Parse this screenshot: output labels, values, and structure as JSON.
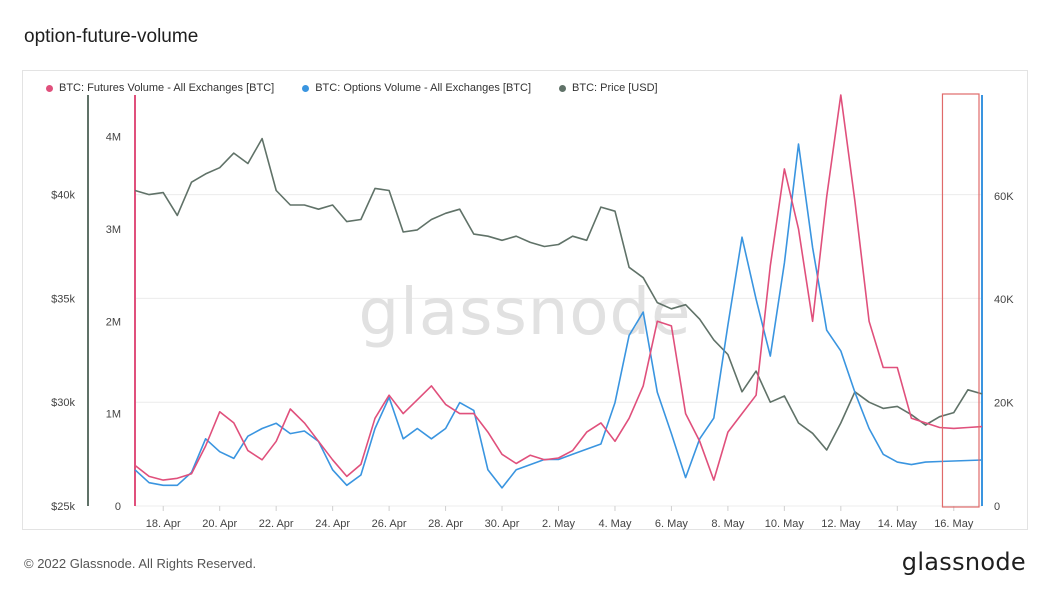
{
  "page": {
    "title": "option-future-volume",
    "copyright": "© 2022 Glassnode. All Rights Reserved.",
    "logo": "glassnode",
    "watermark": "glassnode"
  },
  "chart_data": {
    "type": "line",
    "xlabel": "",
    "ylabel": "",
    "x_ticks": [
      "18. Apr",
      "20. Apr",
      "22. Apr",
      "24. Apr",
      "26. Apr",
      "28. Apr",
      "30. Apr",
      "2. May",
      "4. May",
      "6. May",
      "8. May",
      "10. May",
      "12. May",
      "14. May",
      "16. May"
    ],
    "axes": {
      "price": {
        "side": "outer-left",
        "ticks": [
          "$25k",
          "$30k",
          "$35k",
          "$40k"
        ],
        "range": [
          25000,
          44800
        ]
      },
      "futures": {
        "side": "left",
        "ticks": [
          "0",
          "1M",
          "2M",
          "3M",
          "4M"
        ],
        "range": [
          0,
          4450000
        ]
      },
      "options": {
        "side": "right",
        "ticks": [
          "0",
          "20K",
          "40K",
          "60K"
        ],
        "range": [
          0,
          79500
        ]
      }
    },
    "highlight_range": [
      "15. May",
      "16. May"
    ],
    "grid": true,
    "legend_position": "top-left",
    "series": [
      {
        "name": "BTC: Futures Volume - All Exchanges [BTC]",
        "color": "#e0507c",
        "axis": "futures",
        "x": [
          0,
          0.5,
          1,
          1.5,
          2,
          2.5,
          3,
          3.5,
          4,
          4.5,
          5,
          5.5,
          6,
          6.5,
          7,
          7.5,
          8,
          8.5,
          9,
          9.5,
          10,
          10.5,
          11,
          11.5,
          12,
          12.5,
          13,
          13.5,
          14,
          14.5,
          15,
          15.5,
          16,
          16.5,
          17,
          17.5,
          18,
          18.5,
          19,
          19.5,
          20,
          20.5,
          21,
          21.5,
          22,
          22.5,
          23,
          23.5,
          24,
          24.5,
          25,
          25.5,
          26,
          26.5,
          27,
          27.5,
          28,
          28.5,
          29,
          29.5,
          30
        ],
        "values": [
          440000,
          320000,
          280000,
          300000,
          350000,
          650000,
          1020000,
          900000,
          600000,
          500000,
          700000,
          1050000,
          900000,
          700000,
          500000,
          320000,
          450000,
          950000,
          1200000,
          1000000,
          1150000,
          1300000,
          1100000,
          1000000,
          1000000,
          800000,
          560000,
          460000,
          550000,
          500000,
          520000,
          600000,
          800000,
          900000,
          700000,
          950000,
          1300000,
          2000000,
          1950000,
          1000000,
          700000,
          280000,
          800000,
          1000000,
          1200000,
          2600000,
          3650000,
          3000000,
          2000000,
          3350000,
          4450000,
          3300000,
          2000000,
          1500000,
          1500000,
          950000,
          900000,
          850000,
          840000,
          850000,
          860000
        ]
      },
      {
        "name": "BTC: Options Volume - All Exchanges [BTC]",
        "color": "#3a95e0",
        "axis": "options",
        "x": [
          0,
          0.5,
          1,
          1.5,
          2,
          2.5,
          3,
          3.5,
          4,
          4.5,
          5,
          5.5,
          6,
          6.5,
          7,
          7.5,
          8,
          8.5,
          9,
          9.5,
          10,
          10.5,
          11,
          11.5,
          12,
          12.5,
          13,
          13.5,
          14,
          14.5,
          15,
          15.5,
          16,
          16.5,
          17,
          17.5,
          18,
          18.5,
          19,
          19.5,
          20,
          20.5,
          21,
          21.5,
          22,
          22.5,
          23,
          23.5,
          24,
          24.5,
          25,
          25.5,
          26,
          26.5,
          27,
          27.5,
          28,
          28.5,
          29,
          29.5,
          30
        ],
        "values": [
          7000,
          4500,
          4000,
          4000,
          6500,
          13000,
          10500,
          9200,
          13500,
          15000,
          16000,
          14000,
          14500,
          12500,
          7000,
          4000,
          6000,
          15000,
          21000,
          13000,
          15000,
          13000,
          15000,
          20000,
          18500,
          7000,
          3500,
          7000,
          8000,
          9000,
          9000,
          10000,
          11000,
          12000,
          20000,
          33000,
          37500,
          22000,
          14000,
          5500,
          13000,
          17000,
          35000,
          52000,
          40000,
          29000,
          47000,
          70000,
          50000,
          34000,
          30000,
          22000,
          15000,
          10000,
          8500,
          8000,
          8500,
          8600,
          8700,
          8800,
          8900
        ]
      },
      {
        "name": "BTC: Price [USD]",
        "color": "#607268",
        "axis": "price",
        "x": [
          0,
          0.5,
          1,
          1.5,
          2,
          2.5,
          3,
          3.5,
          4,
          4.5,
          5,
          5.5,
          6,
          6.5,
          7,
          7.5,
          8,
          8.5,
          9,
          9.5,
          10,
          10.5,
          11,
          11.5,
          12,
          12.5,
          13,
          13.5,
          14,
          14.5,
          15,
          15.5,
          16,
          16.5,
          17,
          17.5,
          18,
          18.5,
          19,
          19.5,
          20,
          20.5,
          21,
          21.5,
          22,
          22.5,
          23,
          23.5,
          24,
          24.5,
          25,
          25.5,
          26,
          26.5,
          27,
          27.5,
          28,
          28.5,
          29,
          29.5,
          30
        ],
        "values": [
          40200,
          40000,
          40100,
          39000,
          40600,
          41000,
          41300,
          42000,
          41500,
          42700,
          40200,
          39500,
          39500,
          39300,
          39500,
          38700,
          38800,
          40300,
          40200,
          38200,
          38300,
          38800,
          39100,
          39300,
          38100,
          38000,
          37800,
          38000,
          37700,
          37500,
          37600,
          38000,
          37800,
          39400,
          39200,
          36500,
          36000,
          34800,
          34500,
          34700,
          34000,
          33000,
          32300,
          30500,
          31500,
          30000,
          30300,
          29000,
          28500,
          27700,
          29000,
          30500,
          30000,
          29700,
          29800,
          29400,
          28900,
          29300,
          29500,
          30600,
          30400
        ]
      }
    ]
  }
}
